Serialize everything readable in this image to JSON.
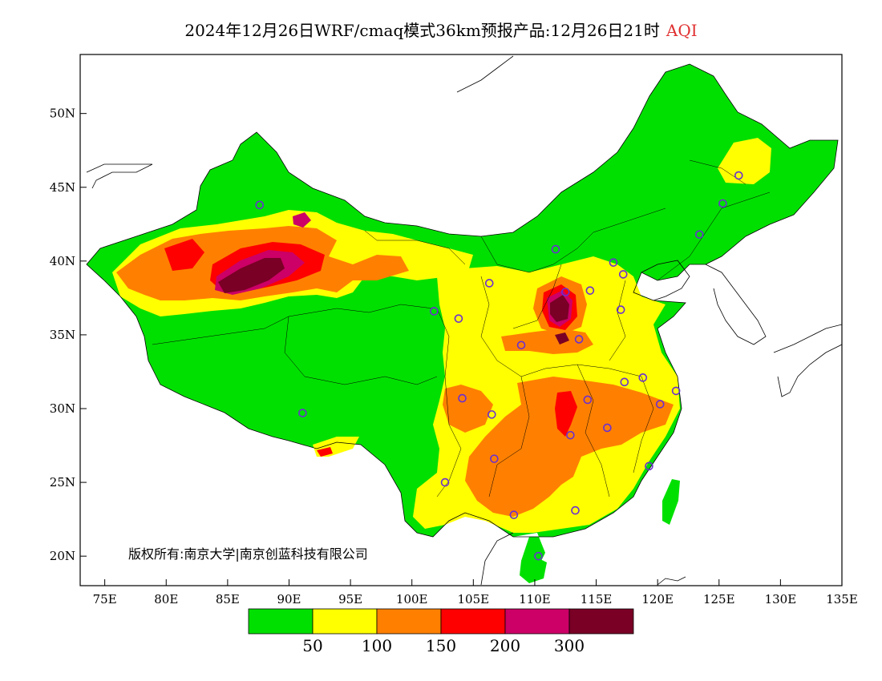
{
  "title": {
    "main": "2024年12月26日WRF/cmaq模式36km预报产品:12月26日21时",
    "variable": "AQI"
  },
  "copyright": "版权所有:南京大学|南京创蓝科技有限公司",
  "colors": {
    "c0_50": "#00e000",
    "c50_100": "#ffff00",
    "c100_150": "#ff8000",
    "c150_200": "#ff0000",
    "c200_300": "#cc0066",
    "c300_plus": "#7a0025",
    "station": "#6a30d0"
  },
  "chart_data": {
    "type": "heatmap",
    "xlim": [
      73,
      135
    ],
    "ylim": [
      18,
      54
    ],
    "x_ticks": [
      "75E",
      "80E",
      "85E",
      "90E",
      "95E",
      "100E",
      "105E",
      "110E",
      "115E",
      "120E",
      "125E",
      "130E",
      "135E"
    ],
    "x_tick_values": [
      75,
      80,
      85,
      90,
      95,
      100,
      105,
      110,
      115,
      120,
      125,
      130,
      135
    ],
    "y_ticks": [
      "20N",
      "25N",
      "30N",
      "35N",
      "40N",
      "45N",
      "50N"
    ],
    "y_tick_values": [
      20,
      25,
      30,
      35,
      40,
      45,
      50
    ],
    "legend": {
      "breaks": [
        "50",
        "100",
        "150",
        "200",
        "300"
      ],
      "colors": [
        "#00e000",
        "#ffff00",
        "#ff8000",
        "#ff0000",
        "#cc0066",
        "#7a0025"
      ]
    },
    "stations": [
      {
        "lon": 87.6,
        "lat": 43.8
      },
      {
        "lon": 91.1,
        "lat": 29.7
      },
      {
        "lon": 101.8,
        "lat": 36.6
      },
      {
        "lon": 103.8,
        "lat": 36.1
      },
      {
        "lon": 106.3,
        "lat": 38.5
      },
      {
        "lon": 104.1,
        "lat": 30.7
      },
      {
        "lon": 106.5,
        "lat": 29.6
      },
      {
        "lon": 106.7,
        "lat": 26.6
      },
      {
        "lon": 102.7,
        "lat": 25.0
      },
      {
        "lon": 108.3,
        "lat": 22.8
      },
      {
        "lon": 110.3,
        "lat": 20.0
      },
      {
        "lon": 108.9,
        "lat": 34.3
      },
      {
        "lon": 111.7,
        "lat": 40.8
      },
      {
        "lon": 112.5,
        "lat": 37.9
      },
      {
        "lon": 114.5,
        "lat": 38.0
      },
      {
        "lon": 116.4,
        "lat": 39.9
      },
      {
        "lon": 117.2,
        "lat": 39.1
      },
      {
        "lon": 113.6,
        "lat": 34.7
      },
      {
        "lon": 117.0,
        "lat": 36.7
      },
      {
        "lon": 117.3,
        "lat": 31.8
      },
      {
        "lon": 118.8,
        "lat": 32.1
      },
      {
        "lon": 121.5,
        "lat": 31.2
      },
      {
        "lon": 120.2,
        "lat": 30.3
      },
      {
        "lon": 114.3,
        "lat": 30.6
      },
      {
        "lon": 112.9,
        "lat": 28.2
      },
      {
        "lon": 115.9,
        "lat": 28.7
      },
      {
        "lon": 119.3,
        "lat": 26.1
      },
      {
        "lon": 113.3,
        "lat": 23.1
      },
      {
        "lon": 123.4,
        "lat": 41.8
      },
      {
        "lon": 125.3,
        "lat": 43.9
      },
      {
        "lon": 126.6,
        "lat": 45.8
      }
    ]
  }
}
